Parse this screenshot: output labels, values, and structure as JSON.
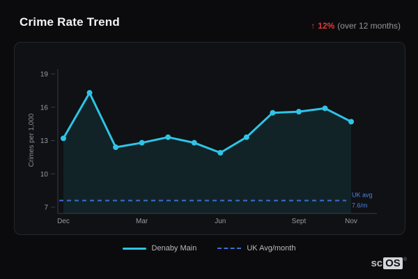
{
  "header": {
    "title": "Crime Rate Trend",
    "trend_arrow": "↑",
    "trend_value": "12%",
    "trend_caption": "(over 12 months)"
  },
  "chart_data": {
    "type": "line",
    "title": "Crime Rate Trend",
    "xlabel": "",
    "ylabel": "Crimes per 1,000",
    "ylim": [
      7,
      19
    ],
    "y_ticks": [
      7,
      10,
      13,
      16,
      19
    ],
    "x_count": 12,
    "x_tick_labels": [
      "Dec",
      "Mar",
      "Jun",
      "Sept",
      "Nov"
    ],
    "x_tick_indices": [
      0,
      3,
      6,
      9,
      11
    ],
    "grid": false,
    "legend_position": "bottom",
    "series": [
      {
        "name": "Denaby Main",
        "type": "line",
        "color": "#2fc4e6",
        "area_fill": "rgba(47,196,230,0.10)",
        "values": [
          13.2,
          17.3,
          12.4,
          12.8,
          13.3,
          12.8,
          11.9,
          13.3,
          15.5,
          15.6,
          15.9,
          14.7
        ]
      },
      {
        "name": "UK Avg/month",
        "type": "threshold-dashed",
        "color": "#3b6ed6",
        "value": 7.6,
        "label_line1": "UK avg",
        "label_line2": "7.6/m",
        "label_color": "#4a86e8"
      }
    ],
    "axis_color": "#3c3c44",
    "tick_label_color": "#9a9aa2"
  },
  "legend": [
    {
      "label": "Denaby Main",
      "style": "solid",
      "color": "#2fc4e6"
    },
    {
      "label": "UK Avg/month",
      "style": "dashed",
      "color": "#3b6ed6"
    }
  ],
  "logo": {
    "prefix": "sc",
    "box": "OS",
    "reg": "®"
  }
}
